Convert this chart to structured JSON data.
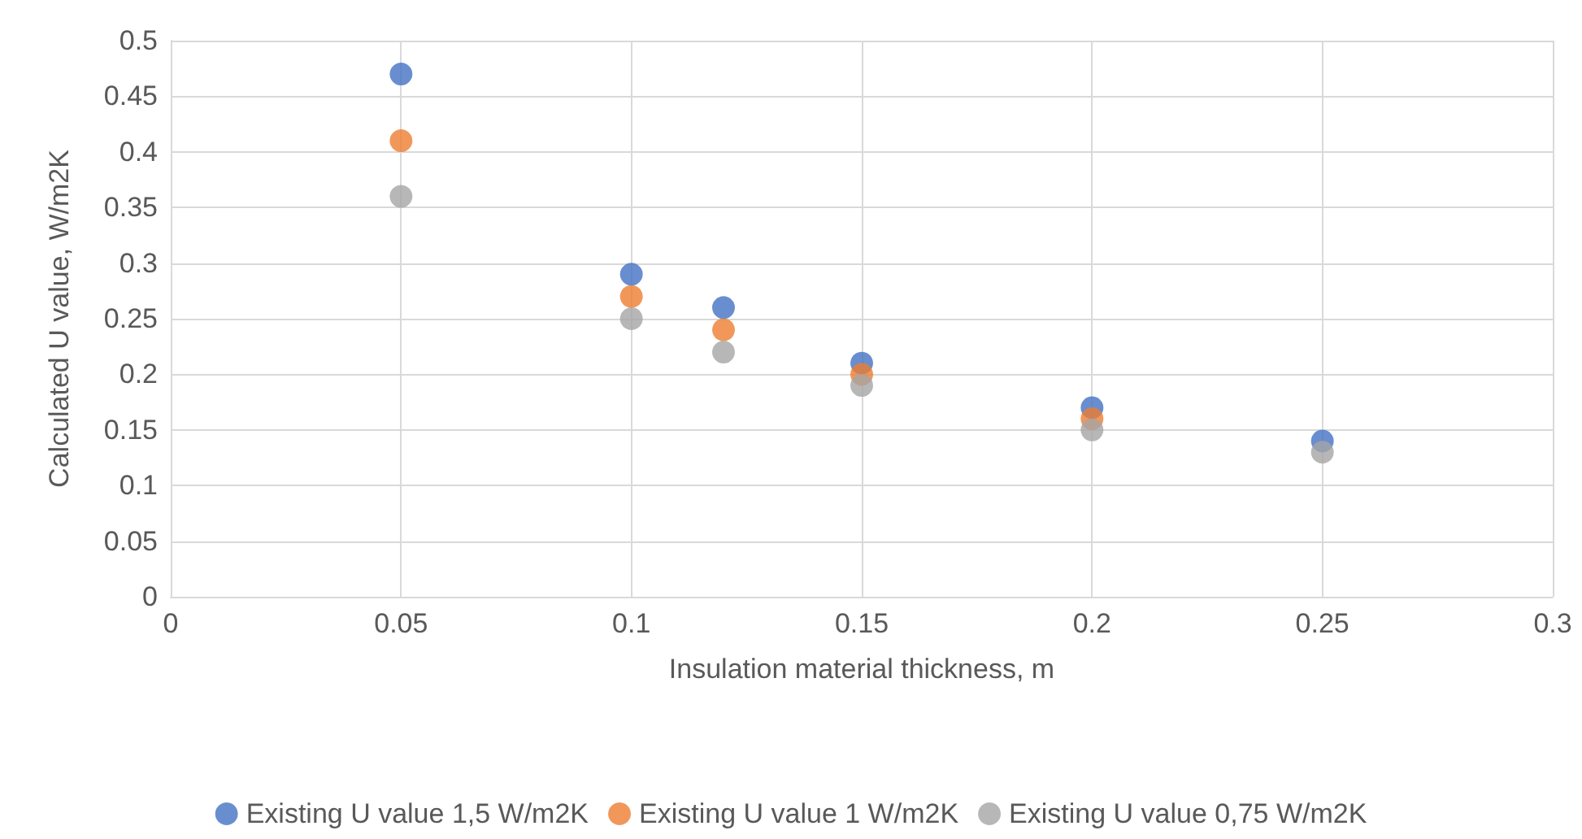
{
  "chart_data": {
    "type": "scatter",
    "xlabel": "Insulation material thickness, m",
    "ylabel": "Calculated U value, W/m2K",
    "x": [
      0.05,
      0.1,
      0.12,
      0.15,
      0.2,
      0.25
    ],
    "series": [
      {
        "name": "Existing U value 1,5 W/m2K",
        "color": "#4472c4",
        "values": [
          0.47,
          0.29,
          0.26,
          0.21,
          0.17,
          0.14
        ]
      },
      {
        "name": "Existing U value 1 W/m2K",
        "color": "#ed7d31",
        "values": [
          0.41,
          0.27,
          0.24,
          0.2,
          0.16,
          null
        ]
      },
      {
        "name": "Existing U value 0,75 W/m2K",
        "color": "#a5a5a5",
        "values": [
          0.36,
          0.25,
          0.22,
          0.19,
          0.15,
          0.13
        ]
      }
    ],
    "xlim": [
      0,
      0.3
    ],
    "xticks": [
      0,
      0.05,
      0.1,
      0.15,
      0.2,
      0.25,
      0.3
    ],
    "ylim": [
      0,
      0.5
    ],
    "yticks": [
      0,
      0.05,
      0.1,
      0.15,
      0.2,
      0.25,
      0.3,
      0.35,
      0.4,
      0.45,
      0.5
    ],
    "grid": true,
    "legend": "bottom",
    "marker": "circle"
  }
}
